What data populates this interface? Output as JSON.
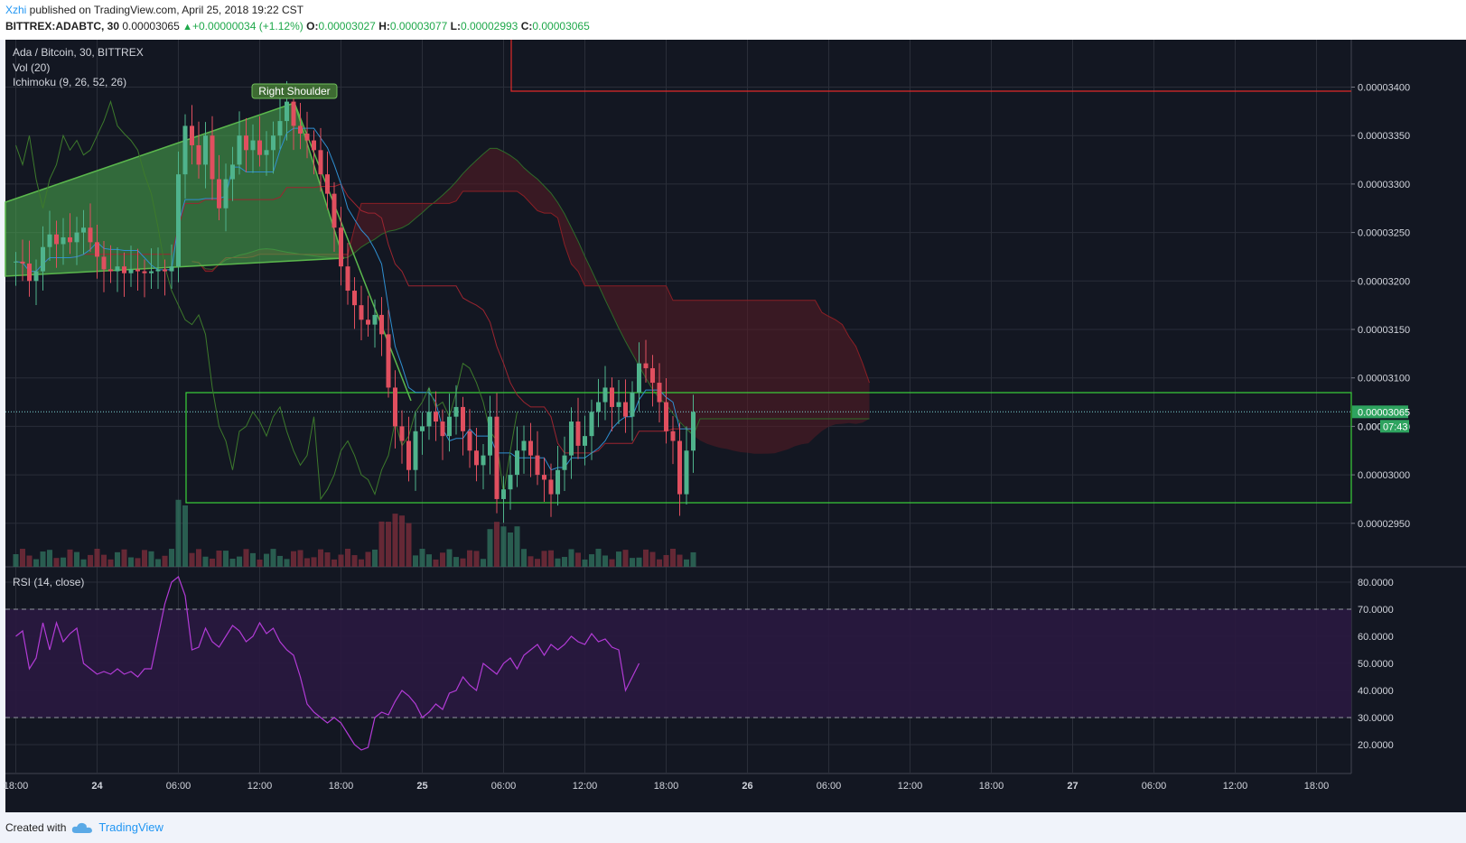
{
  "header": {
    "author": "Xzhi",
    "published": " published on TradingView.com, April 25, 2018 19:22 CST",
    "symbol": "BITTREX:ADABTC, 30",
    "last": "0.00003065",
    "change_arrow": "▲",
    "change": "+0.00000034 (+1.12%)",
    "o_label": "O:",
    "o": "0.00003027",
    "h_label": "H:",
    "h": "0.00003077",
    "l_label": "L:",
    "l": "0.00002993",
    "c_label": "C:",
    "c": "0.00003065"
  },
  "legend": {
    "main": "Ada / Bitcoin, 30, BITTREX",
    "vol": "Vol (20)",
    "ichimoku": "Ichimoku (9, 26, 52, 26)",
    "rsi": "RSI (14, close)"
  },
  "footer": {
    "created_with": "Created with",
    "brand": "TradingView"
  },
  "chart_data": {
    "type": "candlestick",
    "symbol": "BITTREX:ADABTC",
    "interval": "30",
    "ylim": [
      2.9e-05,
      3.44e-05
    ],
    "price_ticks": [
      "0.00003400",
      "0.00003350",
      "0.00003300",
      "0.00003250",
      "0.00003200",
      "0.00003150",
      "0.00003100",
      "0.00003050",
      "0.00003000",
      "0.00002950"
    ],
    "last_price_label": "0.00003065",
    "countdown_label": "07:43",
    "countdown_price_prefix": "0.000",
    "x_ticks": [
      "18:00",
      "24",
      "06:00",
      "12:00",
      "18:00",
      "25",
      "06:00",
      "12:00",
      "18:00",
      "26",
      "06:00",
      "12:00",
      "18:00",
      "27",
      "06:00",
      "12:00",
      "18:00"
    ],
    "x_tick_index": [
      0,
      12,
      24,
      36,
      48,
      60,
      72,
      84,
      96,
      108,
      120,
      132,
      144,
      156,
      168,
      180,
      192
    ],
    "annotation": "Right Shoulder",
    "candles_close": [
      3.22e-05,
      3.218e-05,
      3.2e-05,
      3.21e-05,
      3.235e-05,
      3.248e-05,
      3.238e-05,
      3.245e-05,
      3.24e-05,
      3.25e-05,
      3.255e-05,
      3.24e-05,
      3.225e-05,
      3.212e-05,
      3.21e-05,
      3.215e-05,
      3.208e-05,
      3.212e-05,
      3.21e-05,
      3.208e-05,
      3.21e-05,
      3.212e-05,
      3.21e-05,
      3.215e-05,
      3.31e-05,
      3.36e-05,
      3.34e-05,
      3.32e-05,
      3.35e-05,
      3.305e-05,
      3.275e-05,
      3.305e-05,
      3.32e-05,
      3.35e-05,
      3.335e-05,
      3.345e-05,
      3.33e-05,
      3.335e-05,
      3.35e-05,
      3.365e-05,
      3.385e-05,
      3.36e-05,
      3.352e-05,
      3.345e-05,
      3.335e-05,
      3.31e-05,
      3.29e-05,
      3.255e-05,
      3.215e-05,
      3.19e-05,
      3.175e-05,
      3.16e-05,
      3.155e-05,
      3.165e-05,
      3.145e-05,
      3.09e-05,
      3.05e-05,
      3.035e-05,
      3.005e-05,
      3.045e-05,
      3.05e-05,
      3.065e-05,
      3.055e-05,
      3.04e-05,
      3.06e-05,
      3.07e-05,
      3.045e-05,
      3.025e-05,
      3.01e-05,
      3.02e-05,
      3.06e-05,
      2.975e-05,
      2.985e-05,
      3e-05,
      3.025e-05,
      3.035e-05,
      3.02e-05,
      3e-05,
      2.995e-05,
      2.98e-05,
      3.005e-05,
      3.02e-05,
      3.055e-05,
      3.03e-05,
      3.04e-05,
      3.065e-05,
      3.075e-05,
      3.09e-05,
      3.07e-05,
      3.075e-05,
      3.06e-05,
      3.085e-05,
      3.115e-05,
      3.11e-05,
      3.095e-05,
      3.075e-05,
      3.045e-05,
      3.035e-05,
      2.98e-05,
      3.025e-05,
      3.065e-05
    ],
    "volume_max": 1.0,
    "rsi": {
      "ylim": [
        13.0,
        85.0
      ],
      "ticks": [
        "80.0000",
        "70.0000",
        "60.0000",
        "50.0000",
        "40.0000",
        "30.0000",
        "20.0000"
      ],
      "upper": 70,
      "lower": 30,
      "values": [
        60,
        62,
        48,
        52,
        65,
        55,
        65,
        58,
        61,
        63,
        50,
        48,
        46,
        47,
        46,
        48,
        46,
        47,
        45,
        48,
        48,
        60,
        72,
        80,
        82,
        75,
        55,
        56,
        63,
        58,
        56,
        60,
        64,
        62,
        58,
        60,
        65,
        61,
        63,
        58,
        55,
        53,
        45,
        35,
        32,
        30,
        28,
        30,
        28,
        24,
        20,
        18,
        19,
        30,
        32,
        31,
        36,
        40,
        38,
        35,
        30,
        32,
        35,
        33,
        39,
        40,
        45,
        42,
        40,
        50,
        48,
        46,
        50,
        52,
        48,
        53,
        55,
        57,
        53,
        57,
        55,
        57,
        60,
        58,
        57,
        61,
        58,
        59,
        56,
        55,
        40,
        45,
        50
      ]
    }
  }
}
